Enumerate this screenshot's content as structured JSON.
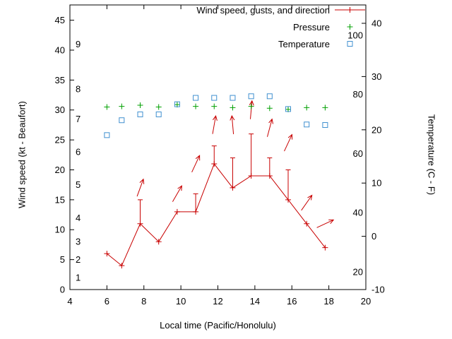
{
  "window": {
    "background": "#ffffff",
    "text_color": "#000000"
  },
  "axes": {
    "x_title": "Local time (Pacific/Honolulu)",
    "y_left_title": "Wind speed (kt - Beaufort)",
    "y_right_title": "Temperature (C - F)"
  },
  "legend": {
    "items": [
      {
        "label": "Wind speed, gusts, and direction",
        "key": "line-with-plus",
        "color": "#c80000"
      },
      {
        "label": "Pressure",
        "key": "plus-marker",
        "color": "#00a000"
      },
      {
        "label": "Temperature",
        "key": "open-square-marker",
        "color": "#4090d0"
      }
    ]
  },
  "chart_data": {
    "type": "line",
    "title": "",
    "xlabel": "Local time (Pacific/Honolulu)",
    "ylabel_left": "Wind speed (kt - Beaufort)",
    "ylabel_right": "Temperature (C - F)",
    "xlim": [
      4,
      20
    ],
    "ylim_left": [
      0,
      45
    ],
    "ylim_right": [
      -10,
      40
    ],
    "x_ticks": [
      4,
      6,
      8,
      10,
      12,
      14,
      16,
      18,
      20
    ],
    "y_ticks_left": [
      0,
      5,
      10,
      15,
      20,
      25,
      30,
      35,
      40,
      45
    ],
    "y_ticks_right": [
      -10,
      0,
      10,
      20,
      30,
      40
    ],
    "grid": false,
    "legend_position": "top-right-inside",
    "beaufort_scale_labels": [
      {
        "label": "1",
        "kt": 2
      },
      {
        "label": "2",
        "kt": 5
      },
      {
        "label": "3",
        "kt": 8
      },
      {
        "label": "4",
        "kt": 12
      },
      {
        "label": "5",
        "kt": 17.5
      },
      {
        "label": "6",
        "kt": 23
      },
      {
        "label": "7",
        "kt": 28.5
      },
      {
        "label": "8",
        "kt": 33.5
      },
      {
        "label": "9",
        "kt": 41
      }
    ],
    "fahrenheit_scale_labels": [
      {
        "label": "20",
        "f": 20
      },
      {
        "label": "40",
        "f": 40
      },
      {
        "label": "60",
        "f": 60
      },
      {
        "label": "80",
        "f": 80
      },
      {
        "label": "100",
        "f": 100
      }
    ],
    "x_hours": [
      6.0,
      6.8,
      7.8,
      8.8,
      9.8,
      10.8,
      11.8,
      12.8,
      13.8,
      14.8,
      15.8,
      16.8,
      17.8
    ],
    "series": [
      {
        "name": "Wind speed, gusts, and direction",
        "style": "lines-points-errorbars",
        "color": "#c80000",
        "axis": "left",
        "wind_kt": [
          6,
          4,
          11,
          8,
          13,
          13,
          21,
          17,
          19,
          19,
          15,
          11,
          7
        ],
        "gust_kt": [
          6,
          4,
          15,
          8,
          13,
          16,
          24,
          22,
          26,
          22,
          20,
          11,
          7
        ],
        "dir_arrows": [
          {
            "x": 7.8,
            "kt": 17,
            "deg": 20
          },
          {
            "x": 9.8,
            "kt": 16,
            "deg": 30
          },
          {
            "x": 10.8,
            "kt": 21,
            "deg": 25
          },
          {
            "x": 11.8,
            "kt": 27.5,
            "deg": 10
          },
          {
            "x": 12.8,
            "kt": 27.5,
            "deg": -5
          },
          {
            "x": 13.8,
            "kt": 30,
            "deg": 5
          },
          {
            "x": 14.8,
            "kt": 27,
            "deg": 15
          },
          {
            "x": 15.8,
            "kt": 24.5,
            "deg": 25
          },
          {
            "x": 16.8,
            "kt": 14.5,
            "deg": 35
          },
          {
            "x": 17.8,
            "kt": 11,
            "deg": 65
          }
        ]
      },
      {
        "name": "Pressure",
        "style": "points-plus",
        "color": "#00a000",
        "axis": "left",
        "values": [
          30.5,
          30.6,
          30.8,
          30.5,
          30.9,
          30.6,
          30.6,
          30.4,
          30.6,
          30.3,
          30.1,
          30.4,
          30.4
        ]
      },
      {
        "name": "Temperature",
        "style": "points-open-square",
        "color": "#4090d0",
        "axis": "right",
        "values_c": [
          19,
          21.8,
          22.9,
          22.9,
          24.8,
          26,
          26,
          26,
          26.3,
          26.3,
          23.9,
          21,
          20.9
        ]
      }
    ]
  }
}
